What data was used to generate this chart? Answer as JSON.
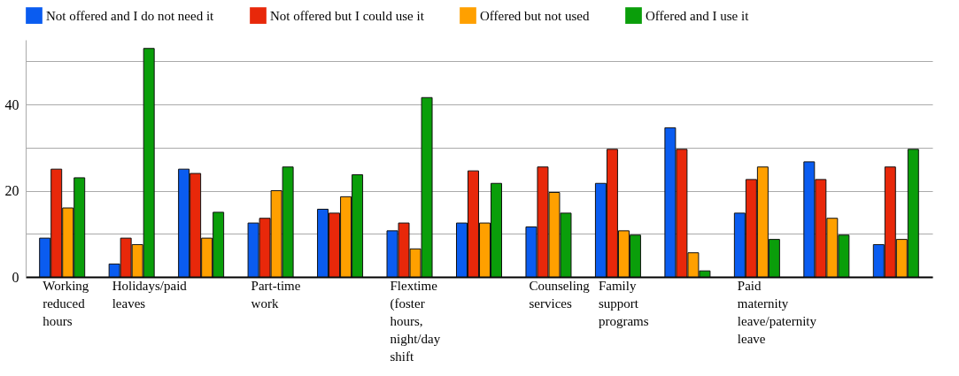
{
  "chart_data": {
    "type": "bar",
    "categories": [
      "Working reduced hours",
      "Holidays/paid leaves",
      null,
      "Part-time work",
      null,
      "Flextime (foster hours, night/day shift",
      null,
      "Counseling services",
      "Family support programs",
      null,
      "Paid maternity leave/paternity leave",
      null,
      null
    ],
    "series": [
      {
        "name": "Not offered and I do not need it",
        "color": "#0a5cf0",
        "values": [
          9,
          3,
          25,
          12.5,
          15.7,
          10.7,
          12.5,
          11.6,
          21.7,
          34.6,
          14.8,
          26.7,
          7.5
        ]
      },
      {
        "name": "Not offered but I could use it",
        "color": "#e8280a",
        "values": [
          25,
          9,
          24,
          13.6,
          14.8,
          12.5,
          24.6,
          25.5,
          29.6,
          29.6,
          22.6,
          22.6,
          25.5
        ]
      },
      {
        "name": "Offered but not used",
        "color": "#ffa000",
        "values": [
          16,
          7.5,
          9,
          20,
          18.6,
          6.5,
          12.5,
          19.6,
          10.7,
          5.6,
          25.5,
          13.6,
          8.7
        ]
      },
      {
        "name": "Offered and I use it",
        "color": "#0a9e0a",
        "values": [
          23,
          53,
          15,
          25.5,
          23.7,
          41.6,
          21.7,
          14.8,
          9.7,
          1.4,
          8.7,
          9.7,
          29.6
        ]
      }
    ],
    "ylim": [
      0,
      55
    ],
    "yticks": [
      0,
      {
        "value": 10,
        "label": null
      },
      20,
      {
        "value": 30,
        "label": null
      },
      40,
      {
        "value": 50,
        "label": null
      }
    ],
    "grid": true,
    "legend": "top"
  }
}
